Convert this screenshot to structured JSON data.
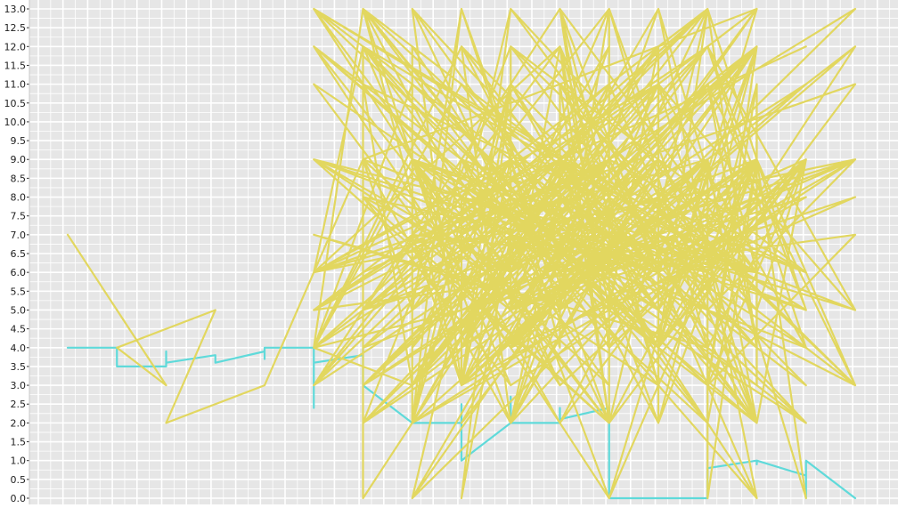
{
  "chart_data": {
    "type": "line",
    "title": "",
    "xlabel": "",
    "ylabel": "",
    "x_index_range": [
      0,
      16
    ],
    "ylim": [
      0,
      13
    ],
    "y_ticks": [
      "0.0",
      "0.5",
      "1.0",
      "1.5",
      "2.0",
      "2.5",
      "3.0",
      "3.5",
      "4.0",
      "4.5",
      "5.0",
      "5.5",
      "6.0",
      "6.5",
      "7.0",
      "7.5",
      "8.0",
      "8.5",
      "9.0",
      "9.5",
      "10.0",
      "10.5",
      "11.0",
      "11.5",
      "12.0",
      "12.5",
      "13.0"
    ],
    "grid": true,
    "legend": "none",
    "background_color": "#e6e6e6",
    "grid_color": "#ffffff",
    "series": [
      {
        "color": "#5fdada",
        "values": [
          4,
          4,
          4,
          4,
          4,
          3.7,
          3.5,
          3.5,
          3.9,
          3.6,
          3.8,
          3.7,
          3.6,
          3.9,
          3.7,
          4,
          4,
          3.5,
          2.4,
          3.6,
          3.8,
          4,
          3,
          2,
          2,
          2,
          2,
          2.5,
          1,
          2,
          2.7,
          2,
          2,
          2.4,
          2.1,
          2.4,
          2,
          0,
          0,
          0,
          0,
          0,
          0,
          0.5,
          0.8,
          1,
          0.9,
          1,
          0.6,
          0,
          1,
          0,
          0,
          0
        ]
      },
      {
        "color": "#e2d75f",
        "values": [
          7,
          3,
          4,
          5,
          2,
          3,
          9,
          13,
          12,
          4,
          3,
          11,
          6,
          9,
          2,
          13,
          5,
          9,
          4,
          12,
          3,
          13,
          5,
          8,
          2,
          11,
          4,
          6,
          13,
          3,
          9,
          7,
          2,
          12,
          5,
          8,
          4,
          11,
          3,
          6,
          13,
          9,
          2,
          7,
          5,
          12,
          4,
          9,
          3,
          13,
          6,
          8,
          2,
          11,
          4,
          9,
          5,
          12,
          3,
          7,
          6,
          9,
          2,
          13,
          4,
          11,
          5,
          8,
          3,
          12,
          6,
          9,
          2,
          7,
          4,
          13,
          5,
          8,
          3,
          11,
          6,
          9,
          2,
          12,
          4,
          7,
          5,
          9,
          3,
          13,
          6,
          8,
          2,
          11,
          4,
          9,
          5,
          12,
          3,
          7,
          6,
          9,
          2,
          13,
          4,
          8,
          5,
          11,
          3,
          12,
          6,
          9,
          2,
          7,
          4,
          13,
          5,
          9,
          3,
          8,
          6,
          11,
          2,
          12,
          4,
          9,
          5,
          7,
          3,
          13,
          6,
          9,
          2,
          8,
          4,
          11,
          5,
          12,
          3,
          9,
          6,
          7,
          2,
          13,
          4,
          9,
          5,
          8,
          3,
          11,
          6,
          12,
          2,
          9,
          4,
          7,
          5,
          13,
          3,
          9,
          6,
          8,
          2,
          11,
          4,
          12,
          5,
          9,
          3,
          7,
          6,
          13,
          2,
          9,
          4,
          8,
          5,
          11,
          3,
          12,
          6,
          9,
          2,
          7,
          4,
          13,
          5,
          9,
          3,
          8,
          6,
          11,
          2,
          12,
          4,
          9,
          5,
          7,
          3,
          13,
          6,
          9,
          2,
          8,
          4,
          11,
          5,
          12,
          3,
          9,
          6,
          7,
          2,
          0,
          9,
          0,
          13,
          0,
          8,
          0,
          12,
          0,
          9,
          0,
          11,
          0,
          7,
          0,
          13,
          0,
          9,
          0,
          12,
          2,
          9,
          5,
          13,
          3,
          9,
          6,
          12,
          4,
          9,
          2,
          11,
          5,
          9,
          3,
          12,
          6,
          9,
          4,
          13,
          2,
          9,
          5,
          12,
          3,
          11,
          6,
          9,
          4,
          12,
          2,
          9,
          5,
          13,
          3,
          9,
          6,
          11,
          4,
          12,
          2,
          9,
          5,
          9,
          3,
          12,
          6,
          13,
          4,
          9,
          2,
          11,
          5,
          12,
          3,
          9,
          6,
          9,
          4,
          13,
          2,
          12,
          5,
          9,
          3,
          11,
          6,
          9,
          4,
          12,
          2,
          13,
          5,
          9,
          3,
          12,
          6,
          9,
          4,
          11,
          2,
          9,
          5,
          12,
          3,
          13,
          6,
          9,
          4,
          9,
          2,
          12,
          5,
          11,
          3,
          9,
          6,
          12,
          4,
          13,
          2,
          9,
          5,
          9,
          3,
          12,
          6,
          11,
          4,
          9,
          2,
          12,
          5,
          13,
          3,
          9,
          6,
          9,
          4,
          12,
          2,
          11,
          5,
          9,
          3,
          12,
          6,
          13,
          4,
          9,
          2,
          9,
          5,
          12,
          3,
          11,
          6,
          9,
          4,
          12,
          2,
          13,
          5,
          9,
          3,
          9,
          6,
          12,
          4,
          11,
          2,
          9,
          5,
          12,
          3,
          13,
          6,
          9,
          4,
          9,
          2,
          12,
          5,
          11,
          3,
          9,
          6,
          12
        ]
      }
    ]
  }
}
